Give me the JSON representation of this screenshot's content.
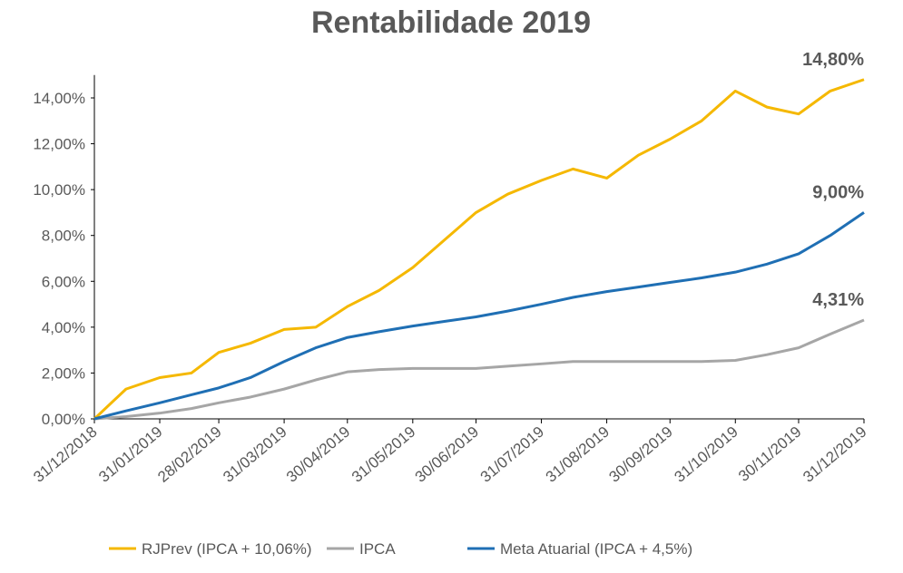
{
  "chart_data": {
    "type": "line",
    "title": "Rentabilidade 2019",
    "x": [
      "31/12/2018",
      "15/01/2019",
      "31/01/2019",
      "15/02/2019",
      "28/02/2019",
      "15/03/2019",
      "31/03/2019",
      "15/04/2019",
      "30/04/2019",
      "15/05/2019",
      "31/05/2019",
      "15/06/2019",
      "30/06/2019",
      "15/07/2019",
      "31/07/2019",
      "15/08/2019",
      "31/08/2019",
      "15/09/2019",
      "30/09/2019",
      "15/10/2019",
      "31/10/2019",
      "15/11/2019",
      "30/11/2019",
      "15/12/2019",
      "31/12/2019"
    ],
    "xticks": [
      "31/12/2018",
      "31/01/2019",
      "28/02/2019",
      "31/03/2019",
      "30/04/2019",
      "31/05/2019",
      "30/06/2019",
      "31/07/2019",
      "31/08/2019",
      "30/09/2019",
      "31/10/2019",
      "30/11/2019",
      "31/12/2019"
    ],
    "series": [
      {
        "name": "RJPrev (IPCA + 10,06%)",
        "color": "#f5b800",
        "values": [
          0,
          1.3,
          1.8,
          2.0,
          2.9,
          3.3,
          3.9,
          4.0,
          4.9,
          5.6,
          6.6,
          7.8,
          9.0,
          9.8,
          10.4,
          10.9,
          10.5,
          11.5,
          12.2,
          13.0,
          14.3,
          13.6,
          13.3,
          14.3,
          14.8
        ],
        "value_labels": [
          null,
          null,
          null,
          null,
          null,
          null,
          null,
          null,
          null,
          null,
          null,
          null,
          null,
          null,
          null,
          null,
          null,
          null,
          null,
          null,
          null,
          null,
          null,
          null,
          "14,80%"
        ]
      },
      {
        "name": "IPCA",
        "color": "#a6a6a6",
        "values": [
          0,
          0.1,
          0.25,
          0.45,
          0.7,
          0.95,
          1.3,
          1.7,
          2.05,
          2.15,
          2.2,
          2.2,
          2.2,
          2.3,
          2.4,
          2.5,
          2.5,
          2.5,
          2.5,
          2.5,
          2.55,
          2.8,
          3.1,
          3.7,
          4.31
        ],
        "value_labels": [
          null,
          null,
          null,
          null,
          null,
          null,
          null,
          null,
          null,
          null,
          null,
          null,
          null,
          null,
          null,
          null,
          null,
          null,
          null,
          null,
          null,
          null,
          null,
          null,
          "4,31%"
        ]
      },
      {
        "name": "Meta Atuarial (IPCA + 4,5%)",
        "color": "#1f6fb4",
        "values": [
          0,
          0.35,
          0.7,
          1.05,
          1.35,
          1.8,
          2.5,
          3.1,
          3.55,
          3.8,
          4.05,
          4.25,
          4.45,
          4.7,
          5.0,
          5.3,
          5.55,
          5.75,
          5.95,
          6.15,
          6.4,
          6.75,
          7.2,
          8.0,
          9.0
        ],
        "value_labels": [
          null,
          null,
          null,
          null,
          null,
          null,
          null,
          null,
          null,
          null,
          null,
          null,
          null,
          null,
          null,
          null,
          null,
          null,
          null,
          null,
          null,
          null,
          null,
          null,
          "9,00%"
        ]
      }
    ],
    "ylim": [
      0,
      15
    ],
    "yticks": [
      {
        "value": 0,
        "label": "0,00%"
      },
      {
        "value": 2,
        "label": "2,00%"
      },
      {
        "value": 4,
        "label": "4,00%"
      },
      {
        "value": 6,
        "label": "6,00%"
      },
      {
        "value": 8,
        "label": "8,00%"
      },
      {
        "value": 10,
        "label": "10,00%"
      },
      {
        "value": 12,
        "label": "12,00%"
      },
      {
        "value": 14,
        "label": "14,00%"
      }
    ],
    "grid": false,
    "legend": "bottom"
  }
}
